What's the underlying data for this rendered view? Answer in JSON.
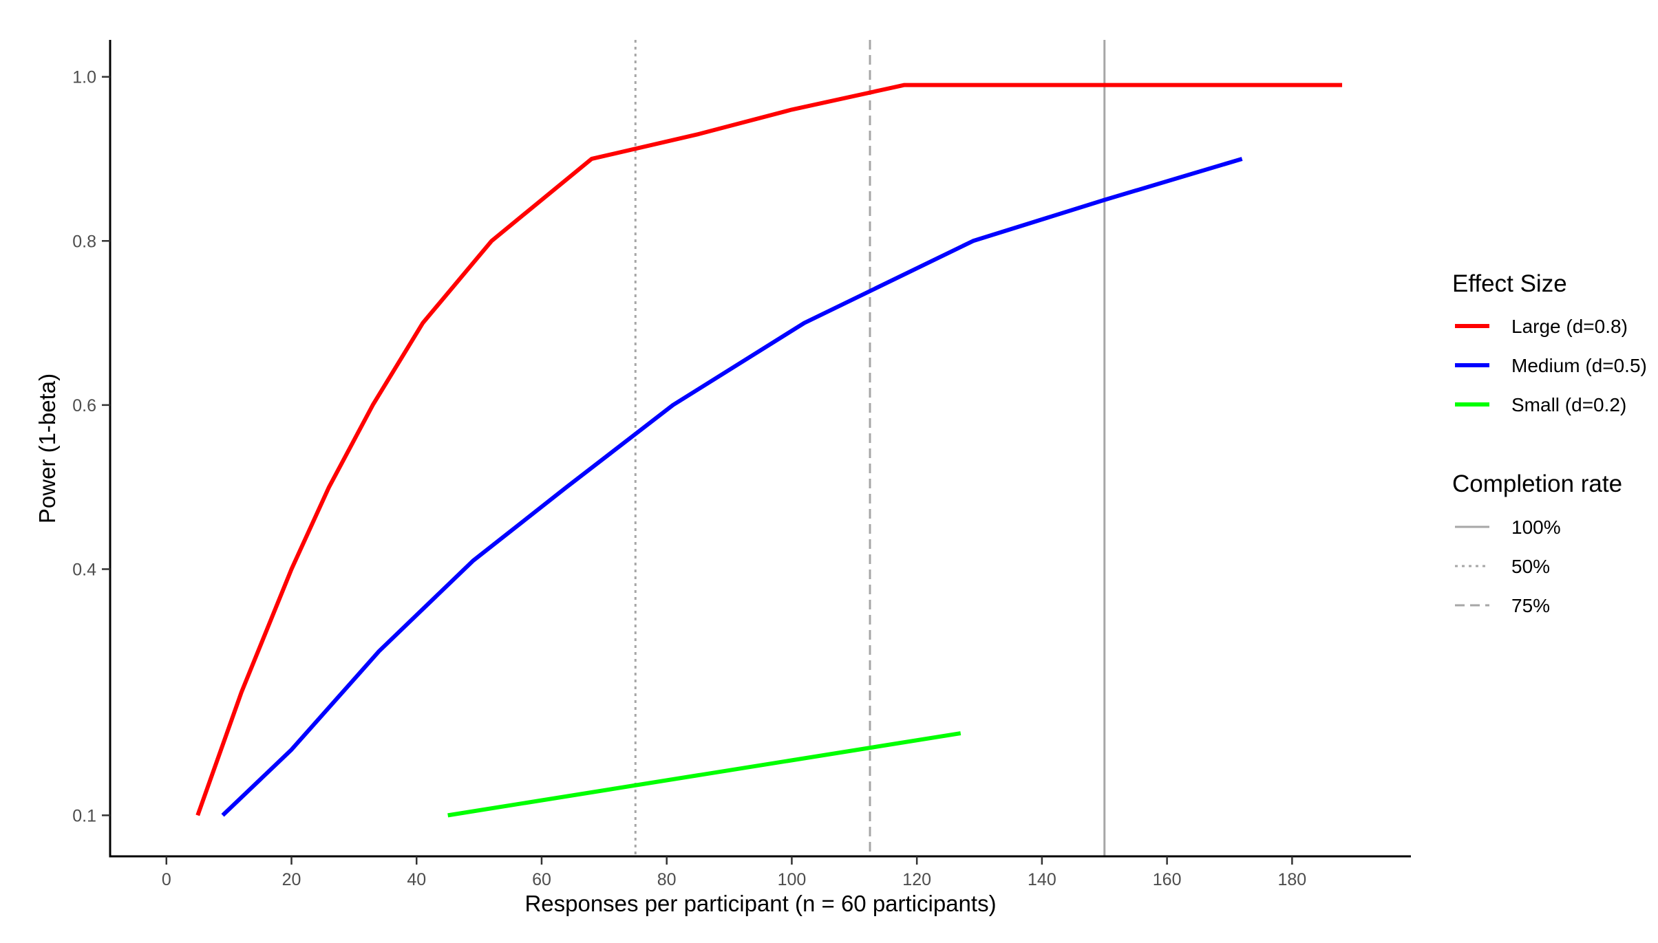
{
  "chart_data": {
    "type": "line",
    "xlabel": "Responses per participant (n = 60 participants)",
    "ylabel": "Power (1-beta)",
    "xlim": [
      -9,
      199
    ],
    "ylim": [
      0.05,
      1.045
    ],
    "x_ticks": [
      0,
      20,
      40,
      60,
      80,
      100,
      120,
      140,
      160,
      180
    ],
    "y_ticks": [
      0.1,
      0.4,
      0.6,
      0.8,
      1.0
    ],
    "y_tick_labels": [
      "0.1",
      "0.4",
      "0.6",
      "0.8",
      "1.0"
    ],
    "grid": false,
    "legend_position": "right",
    "series": [
      {
        "name": "Large (d=0.8)",
        "color": "#ff0000",
        "x": [
          5,
          12,
          20,
          26,
          33,
          41,
          52,
          68,
          85,
          100,
          118,
          150,
          188
        ],
        "y": [
          0.1,
          0.25,
          0.4,
          0.5,
          0.6,
          0.7,
          0.8,
          0.9,
          0.93,
          0.96,
          0.99,
          0.99,
          0.99
        ]
      },
      {
        "name": "Medium (d=0.5)",
        "color": "#0000ff",
        "x": [
          9,
          20,
          34,
          49,
          64,
          81,
          102,
          129,
          150,
          172
        ],
        "y": [
          0.1,
          0.18,
          0.3,
          0.41,
          0.5,
          0.6,
          0.7,
          0.8,
          0.85,
          0.9
        ]
      },
      {
        "name": "Small (d=0.2)",
        "color": "#00ff00",
        "x": [
          45,
          127
        ],
        "y": [
          0.1,
          0.2
        ]
      }
    ],
    "reference_lines": [
      {
        "name": "100%",
        "x": 150,
        "style": "solid"
      },
      {
        "name": "50%",
        "x": 75,
        "style": "dotted"
      },
      {
        "name": "75%",
        "x": 112.5,
        "style": "dashed"
      }
    ],
    "legends": [
      {
        "title": "Effect Size",
        "items": [
          {
            "label": "Large (d=0.8)",
            "color": "#ff0000",
            "style": "solid"
          },
          {
            "label": "Medium (d=0.5)",
            "color": "#0000ff",
            "style": "solid"
          },
          {
            "label": "Small (d=0.2)",
            "color": "#00ff00",
            "style": "solid"
          }
        ]
      },
      {
        "title": "Completion rate",
        "items": [
          {
            "label": "100%",
            "color": "#a6a6a6",
            "style": "solid"
          },
          {
            "label": "50%",
            "color": "#a6a6a6",
            "style": "dotted"
          },
          {
            "label": "75%",
            "color": "#a6a6a6",
            "style": "dashed"
          }
        ]
      }
    ]
  }
}
